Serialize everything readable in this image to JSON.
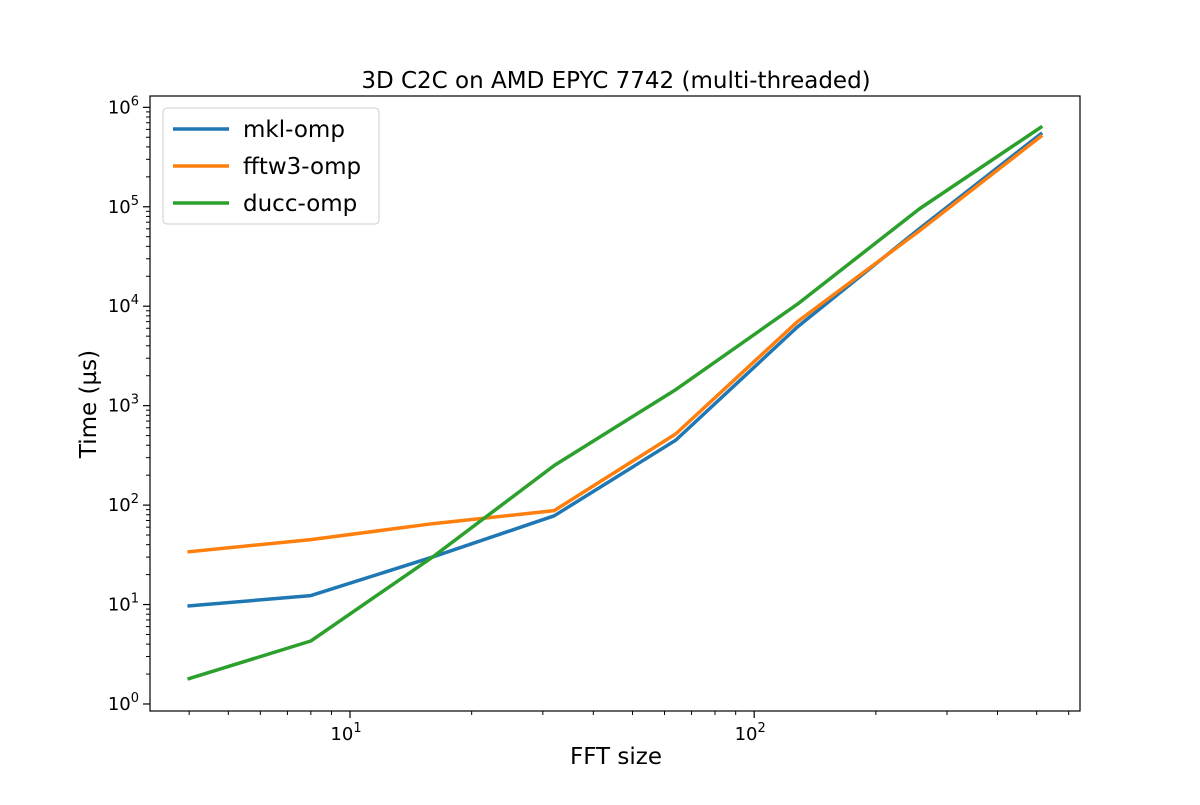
{
  "chart_data": {
    "type": "line",
    "title": "3D C2C on AMD EPYC 7742 (multi-threaded)",
    "xlabel": "FFT size",
    "ylabel": "Time (µs)",
    "xscale": "log",
    "yscale": "log",
    "xlim": [
      3.2,
      640
    ],
    "ylim": [
      0.85,
      1300000
    ],
    "x": [
      4,
      8,
      16,
      32,
      64,
      128,
      256,
      512
    ],
    "x_ticks": [
      {
        "value": 10,
        "base": "10",
        "exp": "1"
      },
      {
        "value": 100,
        "base": "10",
        "exp": "2"
      }
    ],
    "y_ticks": [
      {
        "value": 1,
        "base": "10",
        "exp": "0"
      },
      {
        "value": 10,
        "base": "10",
        "exp": "1"
      },
      {
        "value": 100,
        "base": "10",
        "exp": "2"
      },
      {
        "value": 1000,
        "base": "10",
        "exp": "3"
      },
      {
        "value": 10000,
        "base": "10",
        "exp": "4"
      },
      {
        "value": 100000,
        "base": "10",
        "exp": "5"
      },
      {
        "value": 1000000,
        "base": "10",
        "exp": "6"
      }
    ],
    "grid": false,
    "legend_position": "top-left",
    "series": [
      {
        "name": "mkl-omp",
        "color": "#1f77b4",
        "values": [
          9.7,
          12.3,
          30,
          78,
          450,
          6200,
          60000,
          540000
        ]
      },
      {
        "name": "fftw3-omp",
        "color": "#ff7f0e",
        "values": [
          34,
          45,
          65,
          88,
          520,
          7000,
          57000,
          510000
        ]
      },
      {
        "name": "ducc-omp",
        "color": "#2ca02c",
        "values": [
          1.8,
          4.3,
          30,
          250,
          1450,
          10500,
          95000,
          630000
        ]
      }
    ]
  }
}
